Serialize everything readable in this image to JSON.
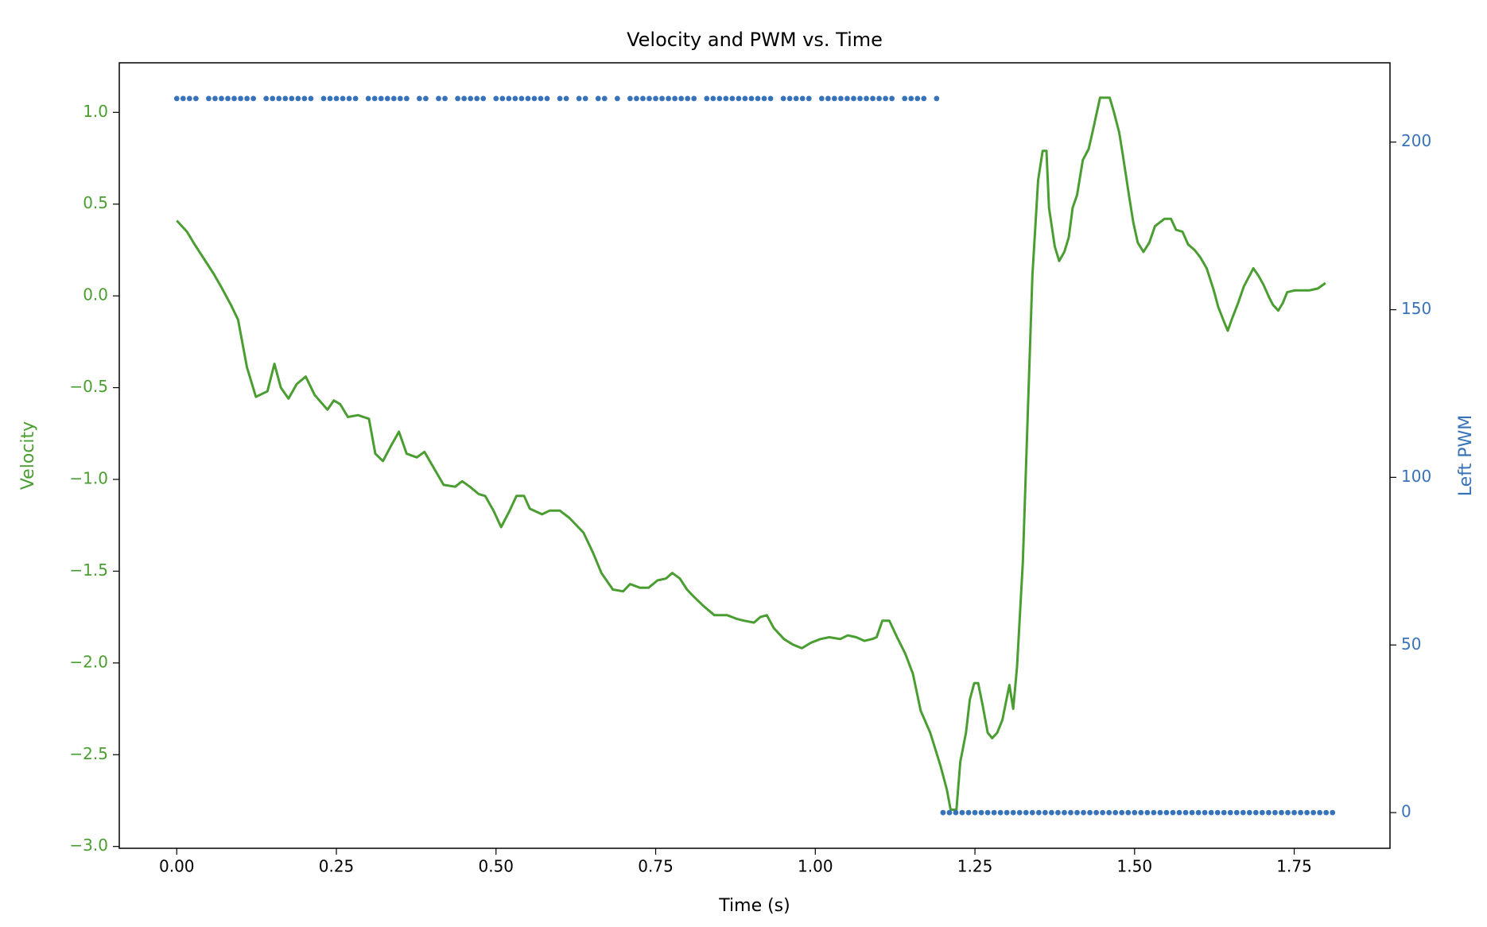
{
  "chart_data": {
    "type": "line",
    "title": "Velocity and PWM vs. Time",
    "xlabel": "Time (s)",
    "ylabel": "Velocity",
    "y2label": "Left PWM",
    "xlim": [
      -0.09,
      1.9
    ],
    "ylim": [
      -3.01,
      1.27
    ],
    "y2lim": [
      -10.65,
      223.65
    ],
    "xticks": [
      {
        "value": 0,
        "label": "0.00"
      },
      {
        "value": 0.25,
        "label": "0.25"
      },
      {
        "value": 0.5,
        "label": "0.50"
      },
      {
        "value": 0.75,
        "label": "0.75"
      },
      {
        "value": 1,
        "label": "1.00"
      },
      {
        "value": 1.25,
        "label": "1.25"
      },
      {
        "value": 1.5,
        "label": "1.50"
      },
      {
        "value": 1.75,
        "label": "1.75"
      }
    ],
    "yticks": [
      {
        "value": -3,
        "label": "−3.0"
      },
      {
        "value": -2.5,
        "label": "−2.5"
      },
      {
        "value": -2,
        "label": "−2.0"
      },
      {
        "value": -1.5,
        "label": "−1.5"
      },
      {
        "value": -1,
        "label": "−1.0"
      },
      {
        "value": -0.5,
        "label": "−0.5"
      },
      {
        "value": 0,
        "label": "0.0"
      },
      {
        "value": 0.5,
        "label": "0.5"
      },
      {
        "value": 1,
        "label": "1.0"
      }
    ],
    "y2ticks": [
      0,
      50,
      100,
      150,
      200
    ],
    "series": [
      {
        "name": "Velocity",
        "type": "line",
        "color": "#4a9e31",
        "axis": "y",
        "x": [
          0,
          0.016,
          0.028,
          0.058,
          0.071,
          0.085,
          0.096,
          0.11,
          0.124,
          0.142,
          0.153,
          0.163,
          0.175,
          0.188,
          0.202,
          0.216,
          0.236,
          0.246,
          0.256,
          0.268,
          0.284,
          0.301,
          0.311,
          0.323,
          0.335,
          0.348,
          0.36,
          0.376,
          0.388,
          0.403,
          0.418,
          0.436,
          0.447,
          0.459,
          0.473,
          0.483,
          0.496,
          0.508,
          0.52,
          0.532,
          0.544,
          0.553,
          0.572,
          0.584,
          0.6,
          0.615,
          0.637,
          0.652,
          0.665,
          0.683,
          0.699,
          0.71,
          0.725,
          0.739,
          0.753,
          0.766,
          0.776,
          0.788,
          0.799,
          0.81,
          0.825,
          0.842,
          0.862,
          0.877,
          0.889,
          0.904,
          0.914,
          0.924,
          0.935,
          0.951,
          0.965,
          0.979,
          0.993,
          1.008,
          1.022,
          1.039,
          1.051,
          1.064,
          1.077,
          1.089,
          1.096,
          1.105,
          1.116,
          1.128,
          1.141,
          1.153,
          1.165,
          1.18,
          1.196,
          1.206,
          1.212,
          1.221,
          1.227,
          1.236,
          1.242,
          1.249,
          1.255,
          1.262,
          1.27,
          1.277,
          1.285,
          1.293,
          1.304,
          1.31,
          1.316,
          1.325,
          1.332,
          1.34,
          1.349,
          1.356,
          1.362,
          1.366,
          1.375,
          1.382,
          1.39,
          1.397,
          1.403,
          1.41,
          1.419,
          1.428,
          1.434,
          1.439,
          1.446,
          1.461,
          1.467,
          1.476,
          1.482,
          1.492,
          1.498,
          1.505,
          1.514,
          1.523,
          1.532,
          1.547,
          1.557,
          1.565,
          1.575,
          1.584,
          1.594,
          1.603,
          1.613,
          1.624,
          1.631,
          1.64,
          1.646,
          1.653,
          1.662,
          1.671,
          1.68,
          1.686,
          1.694,
          1.702,
          1.711,
          1.717,
          1.725,
          1.732,
          1.739,
          1.751,
          1.763,
          1.774,
          1.787,
          1.799
        ],
        "values": [
          0.41,
          0.35,
          0.28,
          0.12,
          0.04,
          -0.05,
          -0.13,
          -0.39,
          -0.55,
          -0.52,
          -0.37,
          -0.5,
          -0.56,
          -0.48,
          -0.44,
          -0.54,
          -0.62,
          -0.57,
          -0.59,
          -0.66,
          -0.65,
          -0.67,
          -0.86,
          -0.9,
          -0.82,
          -0.74,
          -0.86,
          -0.88,
          -0.85,
          -0.94,
          -1.03,
          -1.04,
          -1.01,
          -1.04,
          -1.08,
          -1.09,
          -1.17,
          -1.26,
          -1.18,
          -1.09,
          -1.09,
          -1.16,
          -1.19,
          -1.17,
          -1.17,
          -1.21,
          -1.29,
          -1.4,
          -1.51,
          -1.6,
          -1.61,
          -1.57,
          -1.59,
          -1.59,
          -1.55,
          -1.54,
          -1.51,
          -1.54,
          -1.6,
          -1.64,
          -1.69,
          -1.74,
          -1.74,
          -1.76,
          -1.77,
          -1.78,
          -1.75,
          -1.74,
          -1.81,
          -1.87,
          -1.9,
          -1.92,
          -1.89,
          -1.87,
          -1.86,
          -1.87,
          -1.85,
          -1.86,
          -1.88,
          -1.87,
          -1.86,
          -1.77,
          -1.77,
          -1.86,
          -1.95,
          -2.06,
          -2.26,
          -2.38,
          -2.56,
          -2.69,
          -2.8,
          -2.8,
          -2.54,
          -2.38,
          -2.2,
          -2.11,
          -2.11,
          -2.23,
          -2.38,
          -2.41,
          -2.38,
          -2.31,
          -2.12,
          -2.25,
          -2.02,
          -1.45,
          -0.72,
          0.11,
          0.63,
          0.79,
          0.79,
          0.48,
          0.27,
          0.19,
          0.24,
          0.32,
          0.48,
          0.55,
          0.74,
          0.8,
          0.89,
          0.97,
          1.08,
          1.08,
          1.01,
          0.89,
          0.76,
          0.53,
          0.4,
          0.29,
          0.24,
          0.29,
          0.38,
          0.42,
          0.42,
          0.36,
          0.35,
          0.28,
          0.25,
          0.21,
          0.15,
          0.03,
          -0.06,
          -0.14,
          -0.19,
          -0.12,
          -0.04,
          0.05,
          0.11,
          0.15,
          0.11,
          0.06,
          -0.01,
          -0.05,
          -0.08,
          -0.04,
          0.02,
          0.03,
          0.03,
          0.03,
          0.04,
          0.07
        ]
      },
      {
        "name": "Left PWM",
        "type": "scatter",
        "color": "#3872b8",
        "axis": "y2",
        "x": [
          0,
          0.01,
          0.02,
          0.03,
          0.05,
          0.06,
          0.07,
          0.08,
          0.09,
          0.1,
          0.11,
          0.12,
          0.14,
          0.15,
          0.16,
          0.17,
          0.18,
          0.19,
          0.2,
          0.21,
          0.23,
          0.24,
          0.25,
          0.26,
          0.27,
          0.28,
          0.3,
          0.31,
          0.32,
          0.33,
          0.34,
          0.35,
          0.36,
          0.38,
          0.39,
          0.41,
          0.42,
          0.44,
          0.45,
          0.46,
          0.47,
          0.48,
          0.5,
          0.51,
          0.52,
          0.53,
          0.54,
          0.55,
          0.56,
          0.57,
          0.58,
          0.6,
          0.61,
          0.63,
          0.64,
          0.66,
          0.67,
          0.69,
          0.71,
          0.72,
          0.73,
          0.74,
          0.75,
          0.76,
          0.77,
          0.78,
          0.79,
          0.8,
          0.81,
          0.83,
          0.84,
          0.85,
          0.86,
          0.87,
          0.88,
          0.89,
          0.9,
          0.91,
          0.92,
          0.93,
          0.95,
          0.96,
          0.97,
          0.98,
          0.99,
          1.01,
          1.02,
          1.03,
          1.04,
          1.05,
          1.06,
          1.07,
          1.08,
          1.09,
          1.1,
          1.11,
          1.12,
          1.14,
          1.15,
          1.16,
          1.17,
          1.19,
          1.2,
          1.21,
          1.22,
          1.23,
          1.24,
          1.25,
          1.26,
          1.27,
          1.28,
          1.29,
          1.3,
          1.31,
          1.32,
          1.33,
          1.34,
          1.35,
          1.36,
          1.37,
          1.38,
          1.39,
          1.4,
          1.41,
          1.42,
          1.43,
          1.44,
          1.45,
          1.46,
          1.47,
          1.48,
          1.49,
          1.5,
          1.51,
          1.52,
          1.53,
          1.54,
          1.55,
          1.56,
          1.57,
          1.58,
          1.59,
          1.6,
          1.61,
          1.62,
          1.63,
          1.64,
          1.65,
          1.66,
          1.67,
          1.68,
          1.69,
          1.7,
          1.71,
          1.72,
          1.73,
          1.74,
          1.75,
          1.76,
          1.77,
          1.78,
          1.79,
          1.8,
          1.81
        ],
        "values": [
          213,
          213,
          213,
          213,
          213,
          213,
          213,
          213,
          213,
          213,
          213,
          213,
          213,
          213,
          213,
          213,
          213,
          213,
          213,
          213,
          213,
          213,
          213,
          213,
          213,
          213,
          213,
          213,
          213,
          213,
          213,
          213,
          213,
          213,
          213,
          213,
          213,
          213,
          213,
          213,
          213,
          213,
          213,
          213,
          213,
          213,
          213,
          213,
          213,
          213,
          213,
          213,
          213,
          213,
          213,
          213,
          213,
          213,
          213,
          213,
          213,
          213,
          213,
          213,
          213,
          213,
          213,
          213,
          213,
          213,
          213,
          213,
          213,
          213,
          213,
          213,
          213,
          213,
          213,
          213,
          213,
          213,
          213,
          213,
          213,
          213,
          213,
          213,
          213,
          213,
          213,
          213,
          213,
          213,
          213,
          213,
          213,
          213,
          213,
          213,
          213,
          213,
          0,
          0,
          0,
          0,
          0,
          0,
          0,
          0,
          0,
          0,
          0,
          0,
          0,
          0,
          0,
          0,
          0,
          0,
          0,
          0,
          0,
          0,
          0,
          0,
          0,
          0,
          0,
          0,
          0,
          0,
          0,
          0,
          0,
          0,
          0,
          0,
          0,
          0,
          0,
          0,
          0,
          0,
          0,
          0,
          0,
          0,
          0,
          0,
          0,
          0,
          0,
          0,
          0,
          0,
          0,
          0,
          0,
          0,
          0,
          0,
          0,
          0
        ]
      }
    ]
  }
}
